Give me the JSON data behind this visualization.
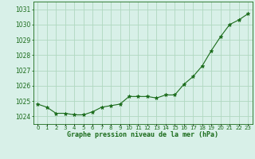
{
  "x": [
    0,
    1,
    2,
    3,
    4,
    5,
    6,
    7,
    8,
    9,
    10,
    11,
    12,
    13,
    14,
    15,
    16,
    17,
    18,
    19,
    20,
    21,
    22,
    23
  ],
  "y": [
    1024.8,
    1024.6,
    1024.2,
    1024.2,
    1024.1,
    1024.1,
    1024.3,
    1024.6,
    1024.7,
    1024.8,
    1025.3,
    1025.3,
    1025.3,
    1025.2,
    1025.4,
    1025.4,
    1026.1,
    1026.6,
    1027.3,
    1028.3,
    1029.2,
    1030.0,
    1030.3,
    1030.7
  ],
  "line_color": "#1a6b1a",
  "marker": "*",
  "marker_size": 3.5,
  "bg_color": "#d8f0e8",
  "grid_color": "#b0d8c0",
  "ylabel_ticks": [
    1024,
    1025,
    1026,
    1027,
    1028,
    1029,
    1030,
    1031
  ],
  "xlabel": "Graphe pression niveau de la mer (hPa)",
  "ylim": [
    1023.5,
    1031.5
  ],
  "xlim": [
    -0.5,
    23.5
  ],
  "xlabel_color": "#1a6b1a",
  "tick_color": "#1a6b1a",
  "spine_color": "#1a6b1a",
  "xtick_labels": [
    "0",
    "1",
    "2",
    "3",
    "4",
    "5",
    "6",
    "7",
    "8",
    "9",
    "10",
    "11",
    "12",
    "13",
    "14",
    "15",
    "16",
    "17",
    "18",
    "19",
    "20",
    "21",
    "22",
    "23"
  ]
}
